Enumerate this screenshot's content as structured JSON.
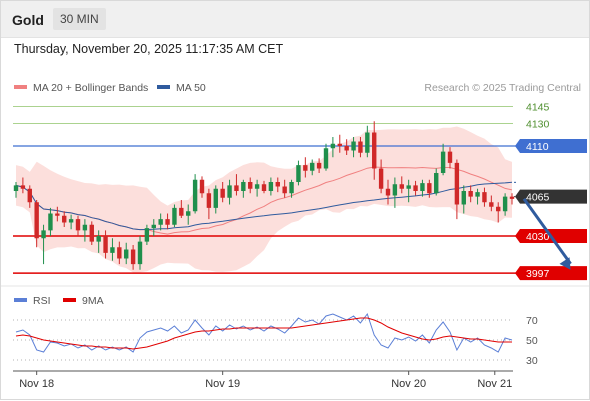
{
  "header": {
    "symbol": "Gold",
    "timeframe": "30 MIN",
    "datetime": "Thursday, November 20, 2025 11:17:35 AM CET"
  },
  "watermark": "Research © 2025 Trading Central",
  "colors": {
    "ma20": "#f08080",
    "band_fill": "#fbd9d6",
    "ma50": "#2f5b9e",
    "up_candle": "#1f8f4c",
    "down_candle": "#d02828",
    "resistance_strong": "#3f6fd1",
    "resistance_light": "#8fc46a",
    "support": "#e00000",
    "current_price_tag": "#333333",
    "rsi": "#5b7fd6",
    "rsi_ma": "#e00000",
    "arrow": "#2f5b9e"
  },
  "chart_data": [
    {
      "type": "candlestick",
      "legend": [
        {
          "name": "MA 20 + Bollinger Bands",
          "color": "#f08080"
        },
        {
          "name": "MA 50",
          "color": "#2f5b9e"
        }
      ],
      "ylim": [
        3990,
        4150
      ],
      "x_ticks": [
        "Nov 18",
        "Nov 19",
        "Nov 20",
        "Nov 21"
      ],
      "x_tick_positions": [
        3,
        30,
        57,
        69.5
      ],
      "bar_count": 73,
      "levels": [
        {
          "value": 4145,
          "label": "4145",
          "style": "light",
          "tag": "text"
        },
        {
          "value": 4130,
          "label": "4130",
          "style": "light",
          "tag": "text"
        },
        {
          "value": 4110,
          "label": "4110",
          "style": "strong-blue",
          "tag": "box"
        },
        {
          "value": 4065,
          "label": "4065",
          "style": "current",
          "tag": "box"
        },
        {
          "value": 4030,
          "label": "4030",
          "style": "support",
          "tag": "box"
        },
        {
          "value": 3997,
          "label": "3997",
          "style": "support",
          "tag": "box"
        }
      ],
      "forecast_arrow": {
        "from_bar": 72,
        "from_value": 4063,
        "to_bar": 80.5,
        "to_value": 4000
      },
      "candles": [
        {
          "o": 4070,
          "h": 4078,
          "l": 4064,
          "c": 4075
        },
        {
          "o": 4075,
          "h": 4082,
          "l": 4068,
          "c": 4072
        },
        {
          "o": 4072,
          "h": 4075,
          "l": 4055,
          "c": 4060
        },
        {
          "o": 4060,
          "h": 4062,
          "l": 4020,
          "c": 4028
        },
        {
          "o": 4028,
          "h": 4040,
          "l": 4005,
          "c": 4035
        },
        {
          "o": 4035,
          "h": 4055,
          "l": 4030,
          "c": 4050
        },
        {
          "o": 4050,
          "h": 4056,
          "l": 4043,
          "c": 4048
        },
        {
          "o": 4048,
          "h": 4052,
          "l": 4038,
          "c": 4042
        },
        {
          "o": 4042,
          "h": 4049,
          "l": 4036,
          "c": 4045
        },
        {
          "o": 4045,
          "h": 4048,
          "l": 4030,
          "c": 4035
        },
        {
          "o": 4035,
          "h": 4045,
          "l": 4025,
          "c": 4040
        },
        {
          "o": 4040,
          "h": 4043,
          "l": 4022,
          "c": 4025
        },
        {
          "o": 4025,
          "h": 4035,
          "l": 4015,
          "c": 4030
        },
        {
          "o": 4030,
          "h": 4035,
          "l": 4010,
          "c": 4015
        },
        {
          "o": 4015,
          "h": 4028,
          "l": 4008,
          "c": 4020
        },
        {
          "o": 4020,
          "h": 4025,
          "l": 4005,
          "c": 4010
        },
        {
          "o": 4010,
          "h": 4024,
          "l": 4005,
          "c": 4018
        },
        {
          "o": 4018,
          "h": 4022,
          "l": 4000,
          "c": 4005
        },
        {
          "o": 4005,
          "h": 4030,
          "l": 4000,
          "c": 4025
        },
        {
          "o": 4025,
          "h": 4040,
          "l": 4022,
          "c": 4037
        },
        {
          "o": 4037,
          "h": 4045,
          "l": 4030,
          "c": 4040
        },
        {
          "o": 4040,
          "h": 4050,
          "l": 4035,
          "c": 4045
        },
        {
          "o": 4045,
          "h": 4050,
          "l": 4036,
          "c": 4040
        },
        {
          "o": 4040,
          "h": 4058,
          "l": 4038,
          "c": 4055
        },
        {
          "o": 4055,
          "h": 4062,
          "l": 4046,
          "c": 4048
        },
        {
          "o": 4048,
          "h": 4058,
          "l": 4040,
          "c": 4052
        },
        {
          "o": 4052,
          "h": 4085,
          "l": 4050,
          "c": 4080
        },
        {
          "o": 4080,
          "h": 4083,
          "l": 4064,
          "c": 4068
        },
        {
          "o": 4068,
          "h": 4072,
          "l": 4045,
          "c": 4055
        },
        {
          "o": 4055,
          "h": 4075,
          "l": 4050,
          "c": 4072
        },
        {
          "o": 4072,
          "h": 4078,
          "l": 4060,
          "c": 4064
        },
        {
          "o": 4064,
          "h": 4080,
          "l": 4058,
          "c": 4075
        },
        {
          "o": 4075,
          "h": 4085,
          "l": 4066,
          "c": 4070
        },
        {
          "o": 4070,
          "h": 4080,
          "l": 4064,
          "c": 4078
        },
        {
          "o": 4078,
          "h": 4082,
          "l": 4068,
          "c": 4072
        },
        {
          "o": 4072,
          "h": 4080,
          "l": 4065,
          "c": 4076
        },
        {
          "o": 4076,
          "h": 4079,
          "l": 4068,
          "c": 4070
        },
        {
          "o": 4070,
          "h": 4082,
          "l": 4066,
          "c": 4078
        },
        {
          "o": 4078,
          "h": 4082,
          "l": 4069,
          "c": 4074
        },
        {
          "o": 4074,
          "h": 4080,
          "l": 4064,
          "c": 4068
        },
        {
          "o": 4068,
          "h": 4080,
          "l": 4064,
          "c": 4078
        },
        {
          "o": 4078,
          "h": 4097,
          "l": 4075,
          "c": 4093
        },
        {
          "o": 4093,
          "h": 4100,
          "l": 4082,
          "c": 4088
        },
        {
          "o": 4088,
          "h": 4098,
          "l": 4084,
          "c": 4095
        },
        {
          "o": 4095,
          "h": 4099,
          "l": 4086,
          "c": 4090
        },
        {
          "o": 4090,
          "h": 4112,
          "l": 4088,
          "c": 4108
        },
        {
          "o": 4108,
          "h": 4118,
          "l": 4100,
          "c": 4112
        },
        {
          "o": 4112,
          "h": 4120,
          "l": 4104,
          "c": 4110
        },
        {
          "o": 4110,
          "h": 4116,
          "l": 4102,
          "c": 4106
        },
        {
          "o": 4106,
          "h": 4118,
          "l": 4100,
          "c": 4114
        },
        {
          "o": 4114,
          "h": 4118,
          "l": 4100,
          "c": 4104
        },
        {
          "o": 4104,
          "h": 4128,
          "l": 4100,
          "c": 4122
        },
        {
          "o": 4122,
          "h": 4132,
          "l": 4080,
          "c": 4090
        },
        {
          "o": 4090,
          "h": 4098,
          "l": 4068,
          "c": 4072
        },
        {
          "o": 4072,
          "h": 4080,
          "l": 4058,
          "c": 4066
        },
        {
          "o": 4066,
          "h": 4082,
          "l": 4055,
          "c": 4076
        },
        {
          "o": 4076,
          "h": 4083,
          "l": 4068,
          "c": 4072
        },
        {
          "o": 4072,
          "h": 4080,
          "l": 4060,
          "c": 4075
        },
        {
          "o": 4075,
          "h": 4079,
          "l": 4066,
          "c": 4070
        },
        {
          "o": 4070,
          "h": 4080,
          "l": 4065,
          "c": 4077
        },
        {
          "o": 4077,
          "h": 4080,
          "l": 4064,
          "c": 4068
        },
        {
          "o": 4068,
          "h": 4090,
          "l": 4066,
          "c": 4086
        },
        {
          "o": 4086,
          "h": 4112,
          "l": 4084,
          "c": 4105
        },
        {
          "o": 4105,
          "h": 4109,
          "l": 4090,
          "c": 4095
        },
        {
          "o": 4095,
          "h": 4098,
          "l": 4045,
          "c": 4058
        },
        {
          "o": 4058,
          "h": 4075,
          "l": 4050,
          "c": 4070
        },
        {
          "o": 4070,
          "h": 4075,
          "l": 4060,
          "c": 4065
        },
        {
          "o": 4065,
          "h": 4072,
          "l": 4058,
          "c": 4069
        },
        {
          "o": 4069,
          "h": 4073,
          "l": 4056,
          "c": 4060
        },
        {
          "o": 4060,
          "h": 4066,
          "l": 4052,
          "c": 4056
        },
        {
          "o": 4056,
          "h": 4060,
          "l": 4042,
          "c": 4052
        },
        {
          "o": 4052,
          "h": 4068,
          "l": 4048,
          "c": 4065
        },
        {
          "o": 4065,
          "h": 4068,
          "l": 4058,
          "c": 4063
        }
      ]
    },
    {
      "type": "line",
      "legend": [
        {
          "name": "RSI",
          "color": "#5b7fd6"
        },
        {
          "name": "9MA",
          "color": "#e00000"
        }
      ],
      "ylim": [
        25,
        75
      ],
      "y_ticks": [
        70,
        50,
        30
      ],
      "series": [
        {
          "name": "RSI",
          "values": [
            58,
            60,
            55,
            40,
            38,
            48,
            47,
            44,
            46,
            42,
            45,
            40,
            44,
            40,
            43,
            40,
            43,
            38,
            52,
            58,
            60,
            62,
            59,
            64,
            57,
            60,
            70,
            62,
            55,
            64,
            59,
            65,
            61,
            64,
            60,
            63,
            59,
            64,
            61,
            57,
            64,
            72,
            68,
            70,
            66,
            74,
            76,
            73,
            70,
            74,
            67,
            76,
            55,
            45,
            42,
            52,
            50,
            53,
            49,
            55,
            47,
            60,
            68,
            58,
            40,
            52,
            48,
            52,
            45,
            42,
            38,
            52,
            50
          ]
        },
        {
          "name": "9MA",
          "values": [
            54,
            55,
            54,
            52,
            50,
            49,
            48,
            47,
            46,
            45,
            44,
            44,
            43,
            43,
            42,
            42,
            42,
            41,
            42,
            43,
            45,
            47,
            49,
            52,
            54,
            56,
            58,
            59,
            59,
            60,
            61,
            61,
            62,
            62,
            62,
            62,
            62,
            62,
            62,
            62,
            62,
            63,
            64,
            65,
            66,
            67,
            68,
            69,
            70,
            71,
            72,
            72,
            70,
            67,
            63,
            60,
            57,
            55,
            53,
            51,
            50,
            51,
            53,
            54,
            53,
            52,
            51,
            51,
            50,
            49,
            48,
            48,
            48
          ]
        }
      ]
    }
  ]
}
